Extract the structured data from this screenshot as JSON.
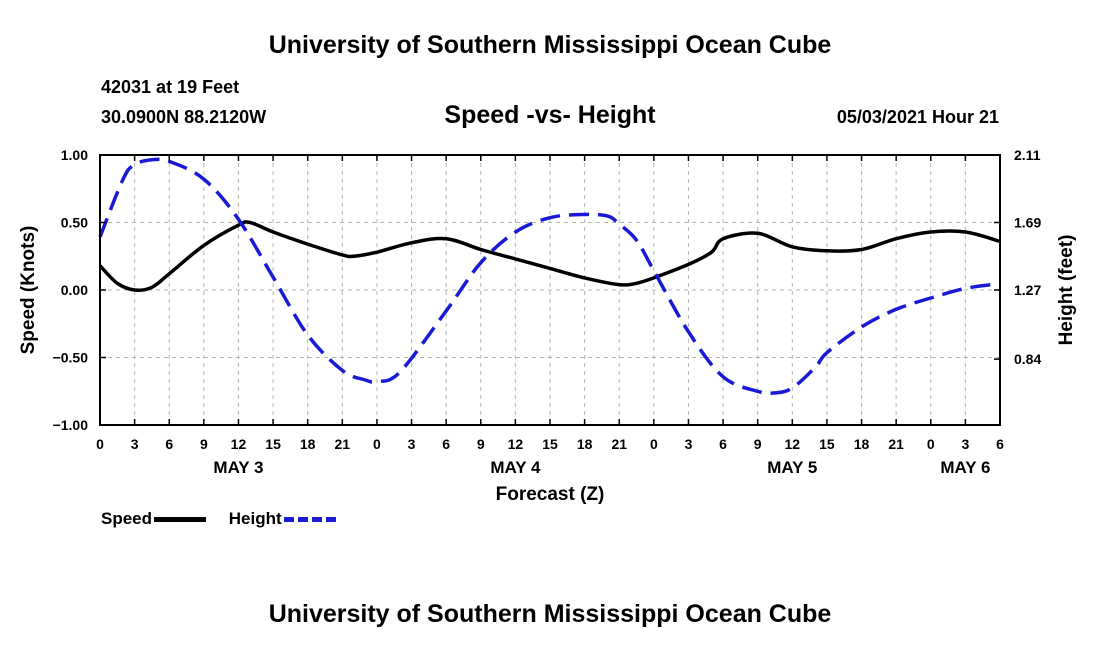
{
  "header": {
    "title": "University of Southern Mississippi Ocean Cube",
    "station": "42031 at 19 Feet",
    "coords": "30.0900N  88.2120W",
    "subtitle": "Speed -vs- Height",
    "timestamp": "05/03/2021 Hour 21"
  },
  "footer": {
    "title": "University of Southern Mississippi Ocean Cube"
  },
  "legend": {
    "speed_label": "Speed",
    "height_label": "Height"
  },
  "colors": {
    "speed": "#000000",
    "height": "#1a1ad6",
    "grid": "#b5b5b5"
  },
  "chart_data": {
    "type": "line",
    "title": "Speed -vs- Height",
    "xlabel": "Forecast (Z)",
    "ylabel": "Speed (Knots)",
    "y2label": "Height (feet)",
    "xlim": [
      0,
      78
    ],
    "ylim": [
      -1.0,
      1.0
    ],
    "y2lim": [
      0.43,
      2.11
    ],
    "yticks": [
      1.0,
      0.5,
      0.0,
      -0.5,
      -1.0
    ],
    "ytick_labels": [
      "1.00",
      "0.50",
      "0.00",
      "−0.50",
      "−1.00"
    ],
    "y2ticks": [
      2.11,
      1.69,
      1.27,
      0.84
    ],
    "y2tick_labels": [
      "2.11",
      "1.69",
      "1.27",
      "0.84"
    ],
    "xticks": [
      0,
      3,
      6,
      9,
      12,
      15,
      18,
      21,
      24,
      27,
      30,
      33,
      36,
      39,
      42,
      45,
      48,
      51,
      54,
      57,
      60,
      63,
      66,
      69,
      72,
      75,
      78
    ],
    "xtick_labels": [
      "0",
      "3",
      "6",
      "9",
      "12",
      "15",
      "18",
      "21",
      "0",
      "3",
      "6",
      "9",
      "12",
      "15",
      "18",
      "21",
      "0",
      "3",
      "6",
      "9",
      "12",
      "15",
      "18",
      "21",
      "0",
      "3",
      "6"
    ],
    "day_labels": [
      {
        "x": 12,
        "label": "MAY 3"
      },
      {
        "x": 36,
        "label": "MAY 4"
      },
      {
        "x": 60,
        "label": "MAY 5"
      },
      {
        "x": 75,
        "label": "MAY 6"
      }
    ],
    "grid": true,
    "legend_position": "bottom-left",
    "series": [
      {
        "name": "Speed",
        "axis": "left",
        "style": "solid",
        "x": [
          0,
          1.5,
          3,
          4.5,
          6,
          9,
          12,
          13,
          15,
          18,
          21,
          22,
          24,
          27,
          30,
          33,
          36,
          39,
          42,
          45,
          46.5,
          48,
          51,
          53,
          54,
          57,
          60,
          63,
          66,
          69,
          72,
          75,
          78
        ],
        "y": [
          0.18,
          0.05,
          0.0,
          0.02,
          0.12,
          0.33,
          0.48,
          0.5,
          0.43,
          0.34,
          0.26,
          0.25,
          0.28,
          0.35,
          0.38,
          0.3,
          0.23,
          0.16,
          0.09,
          0.04,
          0.05,
          0.09,
          0.19,
          0.28,
          0.38,
          0.42,
          0.32,
          0.29,
          0.3,
          0.38,
          0.43,
          0.43,
          0.36
        ]
      },
      {
        "name": "Height",
        "axis": "right",
        "style": "dashed",
        "x": [
          0,
          2,
          3,
          4.5,
          6,
          9,
          12,
          15,
          18,
          21,
          23,
          24,
          26,
          30,
          33,
          36,
          39,
          42,
          44,
          45,
          46.5,
          48,
          51,
          54,
          57,
          58.5,
          60,
          62,
          63,
          66,
          69,
          72,
          75,
          78
        ],
        "y": [
          1.6,
          1.96,
          2.05,
          2.08,
          2.07,
          1.96,
          1.71,
          1.35,
          0.99,
          0.77,
          0.71,
          0.7,
          0.76,
          1.14,
          1.44,
          1.63,
          1.72,
          1.74,
          1.73,
          1.68,
          1.58,
          1.39,
          1.01,
          0.73,
          0.64,
          0.63,
          0.66,
          0.79,
          0.88,
          1.04,
          1.15,
          1.22,
          1.28,
          1.31
        ]
      }
    ]
  }
}
